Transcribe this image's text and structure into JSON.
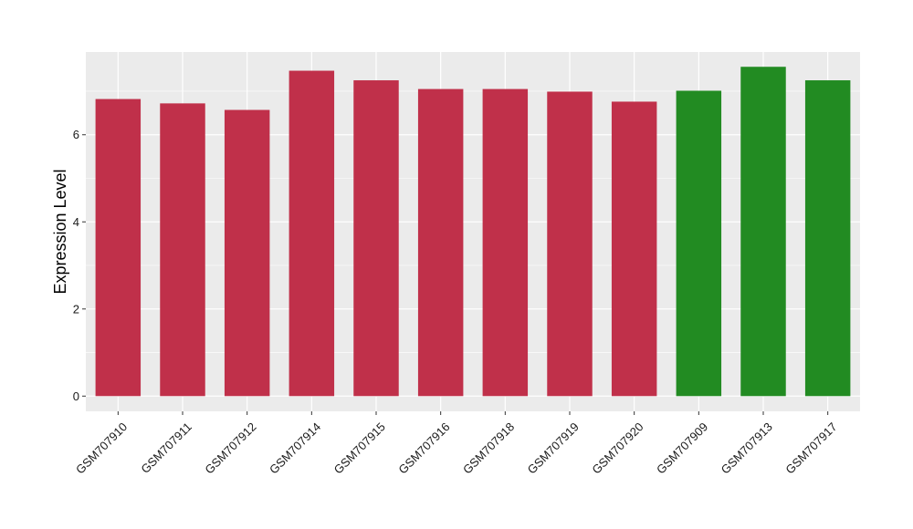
{
  "chart_data": {
    "type": "bar",
    "title": "",
    "xlabel": "",
    "ylabel": "Expression Level",
    "ylim": [
      -0.35,
      7.9
    ],
    "yticks": [
      0,
      2,
      4,
      6
    ],
    "grid": true,
    "legend": "none",
    "categories": [
      "GSM707910",
      "GSM707911",
      "GSM707912",
      "GSM707914",
      "GSM707915",
      "GSM707916",
      "GSM707918",
      "GSM707919",
      "GSM707920",
      "GSM707909",
      "GSM707913",
      "GSM707917"
    ],
    "values": [
      6.82,
      6.72,
      6.57,
      7.47,
      7.25,
      7.05,
      7.05,
      6.99,
      6.76,
      7.01,
      7.56,
      7.25
    ],
    "bar_colors": [
      "#c0304a",
      "#c0304a",
      "#c0304a",
      "#c0304a",
      "#c0304a",
      "#c0304a",
      "#c0304a",
      "#c0304a",
      "#c0304a",
      "#228b22",
      "#228b22",
      "#228b22"
    ],
    "panel_color": "#ebebeb",
    "grid_color": "#ffffff"
  }
}
